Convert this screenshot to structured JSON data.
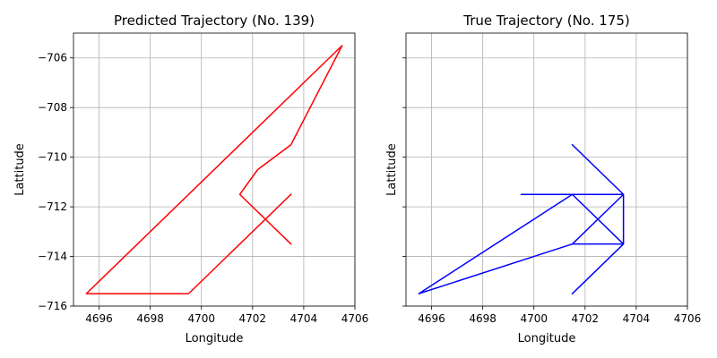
{
  "chart_data": [
    {
      "type": "line",
      "title": "Predicted Trajectory (No. 139)",
      "xlabel": "Longitude",
      "ylabel": "Lattitude",
      "xlim": [
        4695,
        4706
      ],
      "ylim": [
        -716,
        -705
      ],
      "xticks": [
        4696,
        4698,
        4700,
        4702,
        4704,
        4706
      ],
      "yticks": [
        -706,
        -708,
        -710,
        -712,
        -714,
        -716
      ],
      "show_ytick_labels": true,
      "grid": true,
      "color": "#ff0000",
      "series": [
        {
          "x": [
            4703.5,
            4701.5,
            4702.2,
            4703.5,
            4705.5,
            4695.5,
            4699.5,
            4703.5
          ],
          "y": [
            -713.5,
            -711.5,
            -710.5,
            -709.5,
            -705.5,
            -715.5,
            -715.5,
            -711.5
          ]
        }
      ]
    },
    {
      "type": "line",
      "title": "True Trajectory (No. 175)",
      "xlabel": "Longitude",
      "ylabel": "Lattitude",
      "xlim": [
        4695,
        4706
      ],
      "ylim": [
        -716,
        -705
      ],
      "xticks": [
        4696,
        4698,
        4700,
        4702,
        4704,
        4706
      ],
      "yticks": [
        -706,
        -708,
        -710,
        -712,
        -714,
        -716
      ],
      "show_ytick_labels": false,
      "grid": true,
      "color": "#0000ff",
      "series": [
        {
          "x": [
            4701.5,
            4703.5,
            4699.5,
            4703.5,
            4703.5,
            4701.5,
            4703.5,
            4703.5,
            4701.5,
            4695.5,
            4701.5,
            4703.5,
            4701.5
          ],
          "y": [
            -709.5,
            -711.5,
            -711.5,
            -711.5,
            -713.5,
            -713.5,
            -713.5,
            -711.5,
            -713.5,
            -715.5,
            -711.5,
            -713.5,
            -715.5
          ]
        }
      ]
    }
  ]
}
